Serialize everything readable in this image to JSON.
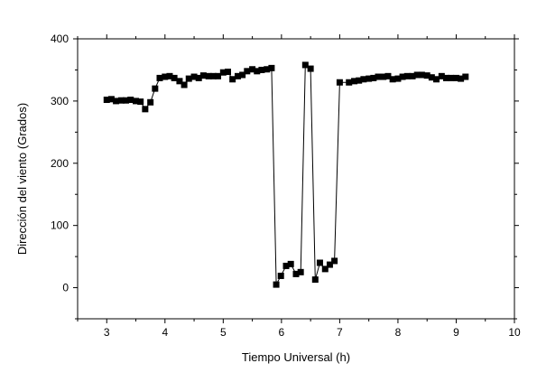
{
  "chart_data": {
    "type": "scatter",
    "title": "",
    "xlabel": "Tiempo Universal (h)",
    "ylabel": "Dirección del viento (Grados)",
    "xlim": [
      2.5,
      10
    ],
    "ylim": [
      -50,
      400
    ],
    "x_ticks": [
      "3",
      "4",
      "5",
      "6",
      "7",
      "8",
      "9",
      "10"
    ],
    "y_ticks": [
      "0",
      "100",
      "200",
      "300",
      "400"
    ],
    "grid": false,
    "marker": "square",
    "connected": true,
    "series_color": "#000000",
    "series": [
      {
        "x": [
          3.0,
          3.08,
          3.16,
          3.25,
          3.33,
          3.41,
          3.5,
          3.58,
          3.66,
          3.75,
          3.83,
          3.91,
          4.0,
          4.08,
          4.16,
          4.25,
          4.33,
          4.41,
          4.5,
          4.58,
          4.66,
          4.75,
          4.83,
          4.91,
          5.0,
          5.08,
          5.16,
          5.25,
          5.33,
          5.41,
          5.5,
          5.58,
          5.66,
          5.75,
          5.83,
          5.91,
          5.99,
          6.08,
          6.16,
          6.25,
          6.33,
          6.41,
          6.5,
          6.58,
          6.66,
          6.75,
          6.83,
          6.91,
          7.0,
          7.16,
          7.25,
          7.33,
          7.41,
          7.5,
          7.58,
          7.66,
          7.75,
          7.83,
          7.91,
          8.0,
          8.08,
          8.16,
          8.25,
          8.33,
          8.41,
          8.5,
          8.58,
          8.66,
          8.75,
          8.83,
          8.91,
          9.0,
          9.08,
          9.16
        ],
        "y": [
          302,
          303,
          300,
          301,
          301,
          302,
          300,
          299,
          287,
          298,
          320,
          337,
          339,
          340,
          337,
          332,
          326,
          336,
          339,
          337,
          341,
          340,
          340,
          340,
          346,
          347,
          335,
          340,
          342,
          348,
          351,
          348,
          350,
          351,
          353,
          5,
          19,
          35,
          38,
          22,
          25,
          358,
          352,
          13,
          40,
          30,
          37,
          43,
          330,
          330,
          332,
          333,
          335,
          336,
          337,
          339,
          339,
          340,
          335,
          336,
          339,
          340,
          340,
          342,
          342,
          341,
          338,
          335,
          340,
          337,
          337,
          337,
          336,
          339
        ]
      }
    ]
  }
}
